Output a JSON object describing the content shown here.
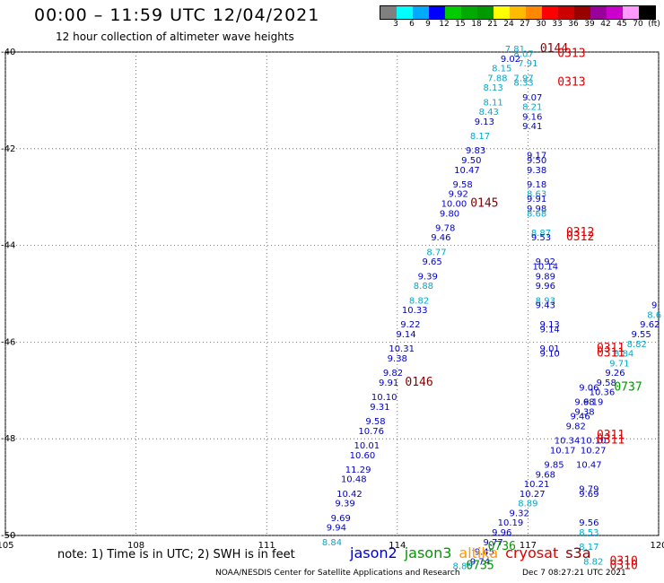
{
  "title": "00:00 – 11:59 UTC 12/04/2021",
  "subtitle": "12 hour collection of altimeter wave heights",
  "colorbar": {
    "colors": [
      "#808080",
      "#00ffff",
      "#00aaff",
      "#0000ff",
      "#00cc00",
      "#00aa00",
      "#009900",
      "#ffff00",
      "#ffbb00",
      "#ff8800",
      "#ff0000",
      "#cc0000",
      "#990000",
      "#990099",
      "#cc00cc",
      "#ff99ff",
      "#000000"
    ],
    "labels": [
      "3",
      "6",
      "9",
      "12",
      "15",
      "18",
      "21",
      "24",
      "27",
      "30",
      "33",
      "36",
      "39",
      "42",
      "45",
      "70",
      "(ft)"
    ]
  },
  "axes": {
    "x_ticks": [
      "105",
      "108",
      "111",
      "114",
      "117",
      "120"
    ],
    "y_ticks": [
      "-40",
      "-42",
      "-44",
      "-46",
      "-48",
      "-50"
    ]
  },
  "note": "note: 1) Time is in UTC; 2) SWH is in feet",
  "legend": [
    {
      "name": "jason2",
      "color": "#0000cc"
    },
    {
      "name": "jason3",
      "color": "#009900"
    },
    {
      "name": "altika",
      "color": "#ff9900"
    },
    {
      "name": "cryosat",
      "color": "#dd0000"
    },
    {
      "name": "s3a",
      "color": "#880000"
    }
  ],
  "footer": "NOAA/NESDIS Center for Satellite Applications and Research",
  "footer_date": "Dec  7 08:27:21 UTC 2021",
  "chart_data": {
    "type": "scatter",
    "xlim": [
      105,
      120
    ],
    "ylim": [
      -50,
      -40
    ],
    "grid": true,
    "points": [
      {
        "lon": 116.7,
        "lat": -40.0,
        "v": "7.81",
        "c": "#00aacc"
      },
      {
        "lon": 116.9,
        "lat": -40.1,
        "v": "8.07",
        "c": "#00aacc"
      },
      {
        "lon": 116.6,
        "lat": -40.2,
        "v": "9.02",
        "c": "#0000cc"
      },
      {
        "lon": 117.0,
        "lat": -40.3,
        "v": "7.91",
        "c": "#00aacc"
      },
      {
        "lon": 116.4,
        "lat": -40.4,
        "v": "8.15",
        "c": "#00aacc"
      },
      {
        "lon": 116.3,
        "lat": -40.6,
        "v": "7.88",
        "c": "#00aacc"
      },
      {
        "lon": 116.9,
        "lat": -40.6,
        "v": "7.97",
        "c": "#00aacc"
      },
      {
        "lon": 116.9,
        "lat": -40.7,
        "v": "8.33",
        "c": "#00aacc"
      },
      {
        "lon": 116.2,
        "lat": -40.8,
        "v": "8.13",
        "c": "#00aacc"
      },
      {
        "lon": 116.2,
        "lat": -41.1,
        "v": "8.11",
        "c": "#00aacc"
      },
      {
        "lon": 117.1,
        "lat": -41.0,
        "v": "9.07",
        "c": "#0000cc"
      },
      {
        "lon": 117.1,
        "lat": -41.2,
        "v": "8.21",
        "c": "#00aacc"
      },
      {
        "lon": 116.1,
        "lat": -41.3,
        "v": "8.43",
        "c": "#00aacc"
      },
      {
        "lon": 116.0,
        "lat": -41.5,
        "v": "9.13",
        "c": "#0000cc"
      },
      {
        "lon": 117.1,
        "lat": -41.4,
        "v": "9.16",
        "c": "#0000cc"
      },
      {
        "lon": 117.1,
        "lat": -41.6,
        "v": "9.41",
        "c": "#0000cc"
      },
      {
        "lon": 115.9,
        "lat": -41.8,
        "v": "8.17",
        "c": "#00aacc"
      },
      {
        "lon": 115.8,
        "lat": -42.1,
        "v": "9.83",
        "c": "#0000cc"
      },
      {
        "lon": 117.2,
        "lat": -42.2,
        "v": "9.17",
        "c": "#0000cc"
      },
      {
        "lon": 117.2,
        "lat": -42.3,
        "v": "9.50",
        "c": "#0000cc"
      },
      {
        "lon": 115.7,
        "lat": -42.3,
        "v": "9.50",
        "c": "#0000cc"
      },
      {
        "lon": 115.6,
        "lat": -42.5,
        "v": "10.47",
        "c": "#0000cc"
      },
      {
        "lon": 117.2,
        "lat": -42.5,
        "v": "9.38",
        "c": "#0000cc"
      },
      {
        "lon": 115.5,
        "lat": -42.8,
        "v": "9.58",
        "c": "#0000cc"
      },
      {
        "lon": 117.2,
        "lat": -42.8,
        "v": "9.18",
        "c": "#0000cc"
      },
      {
        "lon": 115.4,
        "lat": -43.0,
        "v": "9.92",
        "c": "#0000cc"
      },
      {
        "lon": 117.2,
        "lat": -43.0,
        "v": "8.63",
        "c": "#00aacc"
      },
      {
        "lon": 117.2,
        "lat": -43.1,
        "v": "9.91",
        "c": "#0000cc"
      },
      {
        "lon": 115.3,
        "lat": -43.2,
        "v": "10.00",
        "c": "#0000cc"
      },
      {
        "lon": 117.2,
        "lat": -43.3,
        "v": "9.98",
        "c": "#0000cc"
      },
      {
        "lon": 117.2,
        "lat": -43.4,
        "v": "8.68",
        "c": "#00aacc"
      },
      {
        "lon": 115.2,
        "lat": -43.4,
        "v": "9.80",
        "c": "#0000cc"
      },
      {
        "lon": 115.1,
        "lat": -43.7,
        "v": "9.78",
        "c": "#0000cc"
      },
      {
        "lon": 117.3,
        "lat": -43.8,
        "v": "8.87",
        "c": "#00aacc"
      },
      {
        "lon": 117.3,
        "lat": -43.9,
        "v": "9.53",
        "c": "#0000cc"
      },
      {
        "lon": 115.0,
        "lat": -43.9,
        "v": "9.46",
        "c": "#0000cc"
      },
      {
        "lon": 114.9,
        "lat": -44.2,
        "v": "8.77",
        "c": "#00aacc"
      },
      {
        "lon": 114.8,
        "lat": -44.4,
        "v": "9.65",
        "c": "#0000cc"
      },
      {
        "lon": 117.4,
        "lat": -44.4,
        "v": "9.92",
        "c": "#0000cc"
      },
      {
        "lon": 117.4,
        "lat": -44.5,
        "v": "10.14",
        "c": "#0000cc"
      },
      {
        "lon": 114.7,
        "lat": -44.7,
        "v": "9.39",
        "c": "#0000cc"
      },
      {
        "lon": 117.4,
        "lat": -44.7,
        "v": "9.89",
        "c": "#0000cc"
      },
      {
        "lon": 117.4,
        "lat": -44.9,
        "v": "9.96",
        "c": "#0000cc"
      },
      {
        "lon": 114.6,
        "lat": -44.9,
        "v": "8.88",
        "c": "#00aacc"
      },
      {
        "lon": 114.5,
        "lat": -45.2,
        "v": "8.82",
        "c": "#00aacc"
      },
      {
        "lon": 117.4,
        "lat": -45.2,
        "v": "8.93",
        "c": "#00aacc"
      },
      {
        "lon": 117.4,
        "lat": -45.3,
        "v": "9.43",
        "c": "#0000cc"
      },
      {
        "lon": 114.4,
        "lat": -45.4,
        "v": "10.33",
        "c": "#0000cc"
      },
      {
        "lon": 114.3,
        "lat": -45.7,
        "v": "9.22",
        "c": "#0000cc"
      },
      {
        "lon": 117.5,
        "lat": -45.7,
        "v": "9.13",
        "c": "#0000cc"
      },
      {
        "lon": 117.5,
        "lat": -45.8,
        "v": "9.14",
        "c": "#0000cc"
      },
      {
        "lon": 114.2,
        "lat": -45.9,
        "v": "9.14",
        "c": "#0000cc"
      },
      {
        "lon": 114.1,
        "lat": -46.2,
        "v": "10.31",
        "c": "#0000cc"
      },
      {
        "lon": 117.5,
        "lat": -46.2,
        "v": "9.01",
        "c": "#0000cc"
      },
      {
        "lon": 117.5,
        "lat": -46.3,
        "v": "9.10",
        "c": "#0000cc"
      },
      {
        "lon": 114.0,
        "lat": -46.4,
        "v": "9.38",
        "c": "#0000cc"
      },
      {
        "lon": 113.9,
        "lat": -46.7,
        "v": "9.82",
        "c": "#0000cc"
      },
      {
        "lon": 113.8,
        "lat": -46.9,
        "v": "9.91",
        "c": "#0000cc"
      },
      {
        "lon": 113.7,
        "lat": -47.2,
        "v": "10.10",
        "c": "#0000cc"
      },
      {
        "lon": 113.6,
        "lat": -47.4,
        "v": "9.31",
        "c": "#0000cc"
      },
      {
        "lon": 113.5,
        "lat": -47.7,
        "v": "9.58",
        "c": "#0000cc"
      },
      {
        "lon": 113.4,
        "lat": -47.9,
        "v": "10.76",
        "c": "#0000cc"
      },
      {
        "lon": 113.3,
        "lat": -48.2,
        "v": "10.01",
        "c": "#0000cc"
      },
      {
        "lon": 113.2,
        "lat": -48.4,
        "v": "10.60",
        "c": "#0000cc"
      },
      {
        "lon": 113.1,
        "lat": -48.7,
        "v": "11.29",
        "c": "#0000cc"
      },
      {
        "lon": 113.0,
        "lat": -48.9,
        "v": "10.48",
        "c": "#0000cc"
      },
      {
        "lon": 112.9,
        "lat": -49.2,
        "v": "10.42",
        "c": "#0000cc"
      },
      {
        "lon": 112.8,
        "lat": -49.4,
        "v": "9.39",
        "c": "#0000cc"
      },
      {
        "lon": 112.7,
        "lat": -49.7,
        "v": "9.69",
        "c": "#0000cc"
      },
      {
        "lon": 112.6,
        "lat": -49.9,
        "v": "9.94",
        "c": "#0000cc"
      },
      {
        "lon": 112.5,
        "lat": -50.2,
        "v": "8.84",
        "c": "#00aacc"
      },
      {
        "lon": 119.9,
        "lat": -45.3,
        "v": "9",
        "c": "#0000cc"
      },
      {
        "lon": 119.9,
        "lat": -45.5,
        "v": "8.6",
        "c": "#00aacc"
      },
      {
        "lon": 119.8,
        "lat": -45.7,
        "v": "9.62",
        "c": "#0000cc"
      },
      {
        "lon": 119.6,
        "lat": -45.9,
        "v": "9.55",
        "c": "#0000cc"
      },
      {
        "lon": 119.5,
        "lat": -46.1,
        "v": "8.82",
        "c": "#00aacc"
      },
      {
        "lon": 119.2,
        "lat": -46.3,
        "v": "8.84",
        "c": "#00aacc"
      },
      {
        "lon": 119.1,
        "lat": -46.5,
        "v": "9.71",
        "c": "#00aacc"
      },
      {
        "lon": 119.0,
        "lat": -46.7,
        "v": "9.26",
        "c": "#0000cc"
      },
      {
        "lon": 118.8,
        "lat": -46.9,
        "v": "9.58",
        "c": "#0000cc"
      },
      {
        "lon": 118.4,
        "lat": -47.0,
        "v": "9.06",
        "c": "#0000cc"
      },
      {
        "lon": 118.7,
        "lat": -47.1,
        "v": "10.36",
        "c": "#0000cc"
      },
      {
        "lon": 118.3,
        "lat": -47.3,
        "v": "9.68",
        "c": "#0000cc"
      },
      {
        "lon": 118.5,
        "lat": -47.3,
        "v": "9.19",
        "c": "#0000cc"
      },
      {
        "lon": 118.3,
        "lat": -47.5,
        "v": "9.38",
        "c": "#0000cc"
      },
      {
        "lon": 118.2,
        "lat": -47.6,
        "v": "9.46",
        "c": "#0000cc"
      },
      {
        "lon": 118.1,
        "lat": -47.8,
        "v": "9.82",
        "c": "#0000cc"
      },
      {
        "lon": 117.9,
        "lat": -48.1,
        "v": "10.34",
        "c": "#0000cc"
      },
      {
        "lon": 118.5,
        "lat": -48.1,
        "v": "10.10",
        "c": "#0000cc"
      },
      {
        "lon": 118.5,
        "lat": -48.3,
        "v": "10.27",
        "c": "#0000cc"
      },
      {
        "lon": 117.8,
        "lat": -48.3,
        "v": "10.17",
        "c": "#0000cc"
      },
      {
        "lon": 118.4,
        "lat": -48.6,
        "v": "10.47",
        "c": "#0000cc"
      },
      {
        "lon": 117.6,
        "lat": -48.6,
        "v": "9.85",
        "c": "#0000cc"
      },
      {
        "lon": 117.4,
        "lat": -48.8,
        "v": "9.68",
        "c": "#0000cc"
      },
      {
        "lon": 117.2,
        "lat": -49.0,
        "v": "10.21",
        "c": "#0000cc"
      },
      {
        "lon": 118.4,
        "lat": -49.1,
        "v": "9.79",
        "c": "#0000cc"
      },
      {
        "lon": 118.4,
        "lat": -49.2,
        "v": "9.69",
        "c": "#0000cc"
      },
      {
        "lon": 117.1,
        "lat": -49.2,
        "v": "10.27",
        "c": "#0000cc"
      },
      {
        "lon": 117.0,
        "lat": -49.4,
        "v": "8.89",
        "c": "#00aacc"
      },
      {
        "lon": 116.8,
        "lat": -49.6,
        "v": "9.32",
        "c": "#0000cc"
      },
      {
        "lon": 116.6,
        "lat": -49.8,
        "v": "10.19",
        "c": "#0000cc"
      },
      {
        "lon": 116.4,
        "lat": -50.0,
        "v": "9.96",
        "c": "#0000cc"
      },
      {
        "lon": 118.4,
        "lat": -49.8,
        "v": "9.56",
        "c": "#0000cc"
      },
      {
        "lon": 118.4,
        "lat": -50.0,
        "v": "8.53",
        "c": "#00aacc"
      },
      {
        "lon": 116.2,
        "lat": -50.2,
        "v": "9.77",
        "c": "#0000cc"
      },
      {
        "lon": 118.4,
        "lat": -50.3,
        "v": "8.17",
        "c": "#00aacc"
      },
      {
        "lon": 116.0,
        "lat": -50.4,
        "v": "9.45",
        "c": "#0000cc"
      },
      {
        "lon": 115.9,
        "lat": -50.6,
        "v": "9.74",
        "c": "#0000cc"
      },
      {
        "lon": 118.5,
        "lat": -50.6,
        "v": "8.82",
        "c": "#00aacc"
      },
      {
        "lon": 115.5,
        "lat": -50.7,
        "v": "8.85",
        "c": "#00aacc"
      }
    ],
    "times": [
      {
        "lon": 117.6,
        "lat": -40.0,
        "t": "0144",
        "c": "#880000"
      },
      {
        "lon": 118.0,
        "lat": -40.1,
        "t": "0313",
        "c": "#dd0000"
      },
      {
        "lon": 118.0,
        "lat": -40.7,
        "t": "0313",
        "c": "#dd0000"
      },
      {
        "lon": 116.0,
        "lat": -43.2,
        "t": "0145",
        "c": "#880000"
      },
      {
        "lon": 118.2,
        "lat": -43.8,
        "t": "0312",
        "c": "#dd0000"
      },
      {
        "lon": 118.2,
        "lat": -43.9,
        "t": "0312",
        "c": "#dd0000"
      },
      {
        "lon": 118.9,
        "lat": -46.2,
        "t": "0311",
        "c": "#dd0000"
      },
      {
        "lon": 118.9,
        "lat": -46.3,
        "t": "0311",
        "c": "#dd0000"
      },
      {
        "lon": 114.5,
        "lat": -46.9,
        "t": "0146",
        "c": "#880000"
      },
      {
        "lon": 119.3,
        "lat": -47.0,
        "t": "0737",
        "c": "#009900"
      },
      {
        "lon": 118.9,
        "lat": -48.0,
        "t": "0311",
        "c": "#dd0000"
      },
      {
        "lon": 118.9,
        "lat": -48.1,
        "t": "0311",
        "c": "#dd0000"
      },
      {
        "lon": 116.4,
        "lat": -50.3,
        "t": "0736",
        "c": "#009900"
      },
      {
        "lon": 119.2,
        "lat": -50.6,
        "t": "0310",
        "c": "#dd0000"
      },
      {
        "lon": 119.2,
        "lat": -50.7,
        "t": "0310",
        "c": "#dd0000"
      },
      {
        "lon": 115.9,
        "lat": -50.7,
        "t": "0735",
        "c": "#009900"
      }
    ]
  }
}
